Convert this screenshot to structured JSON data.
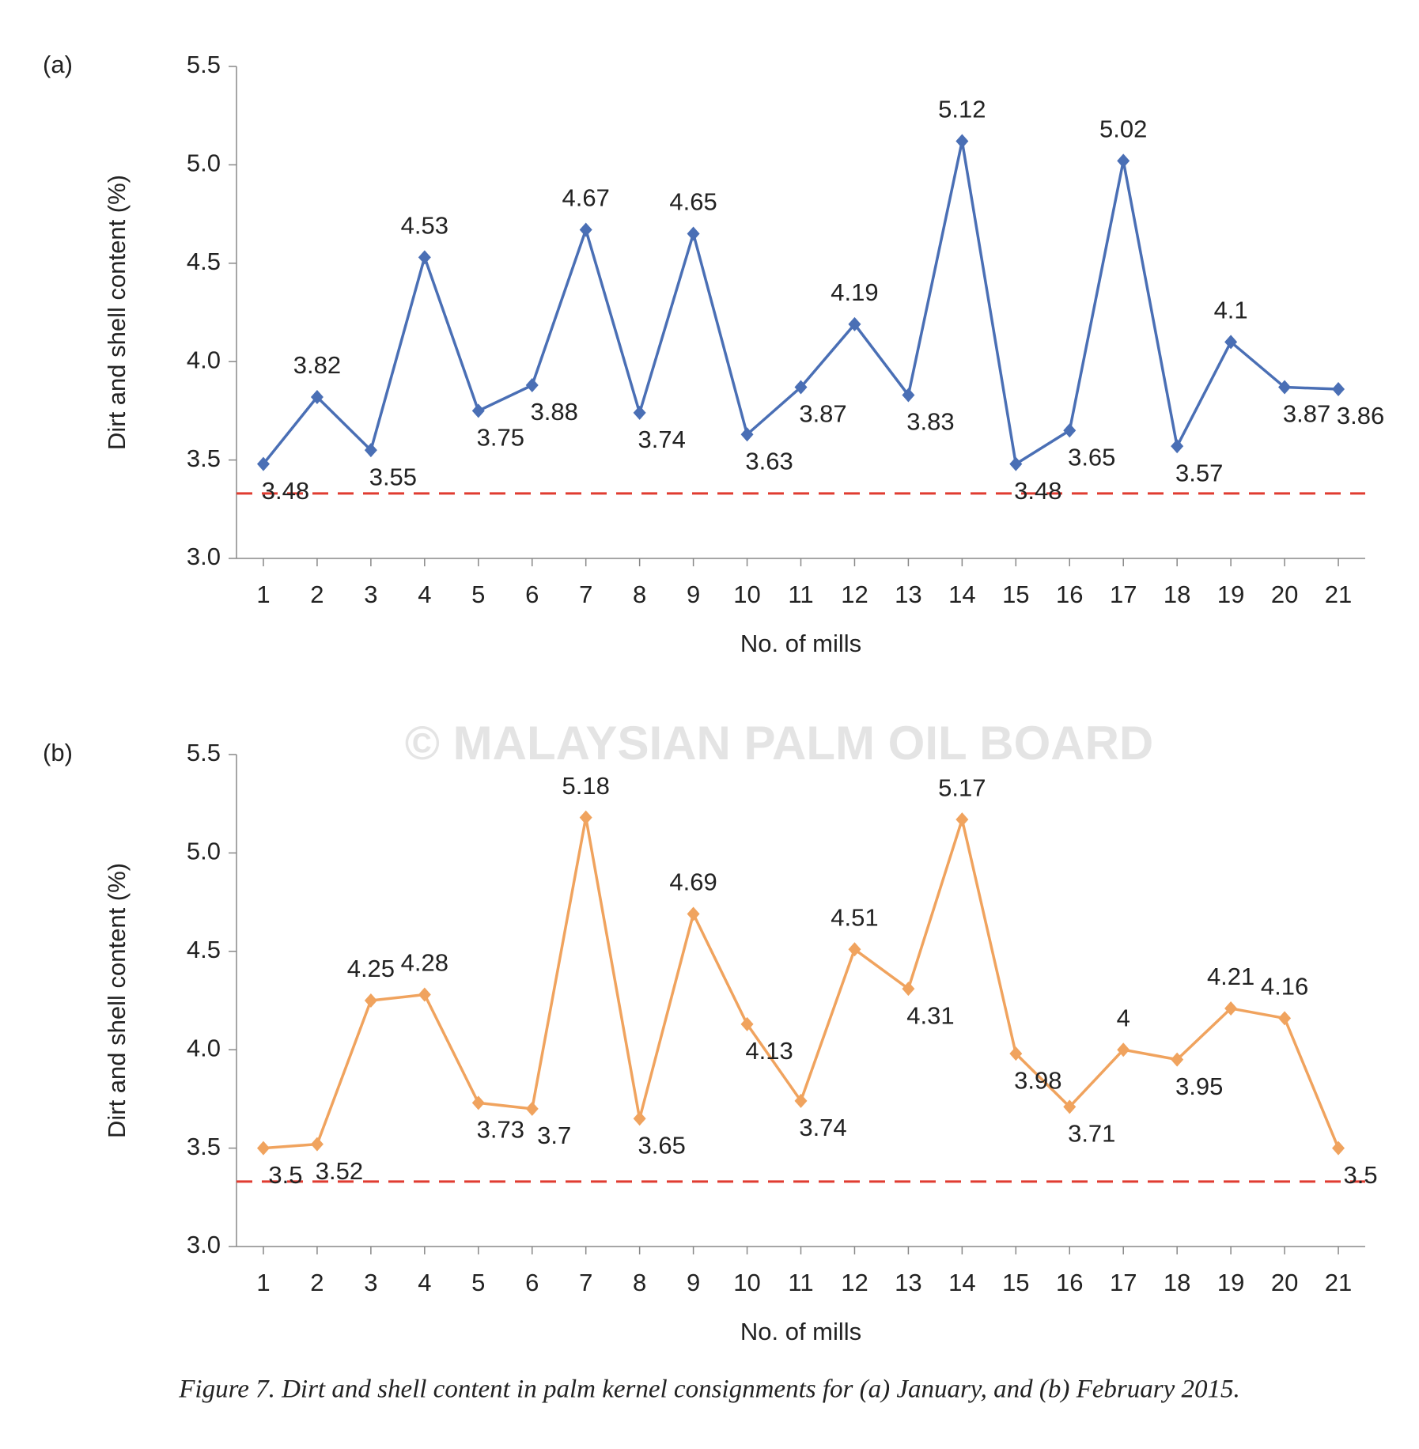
{
  "chart_data": [
    {
      "type": "line",
      "panel_label": "(a)",
      "y_label": "Dirt and shell content (%)",
      "x_label": "No. of mills",
      "categories": [
        "1",
        "2",
        "3",
        "4",
        "5",
        "6",
        "7",
        "8",
        "9",
        "10",
        "11",
        "12",
        "13",
        "14",
        "15",
        "16",
        "17",
        "18",
        "19",
        "20",
        "21"
      ],
      "series": [
        {
          "color": "#4a6fb5",
          "values": [
            3.48,
            3.82,
            3.55,
            4.53,
            3.75,
            3.88,
            4.67,
            3.74,
            4.65,
            3.63,
            3.87,
            4.19,
            3.83,
            5.12,
            3.48,
            3.65,
            5.02,
            3.57,
            4.1,
            3.87,
            3.86
          ]
        }
      ],
      "ylim": [
        3,
        5.5
      ],
      "yticks": [
        {
          "value": 3,
          "label": "3.0"
        },
        3.5,
        {
          "value": 4,
          "label": "4.0"
        },
        4.5,
        {
          "value": 5,
          "label": "5.0"
        },
        5.5
      ],
      "reference_line": {
        "value": 3.33,
        "color": "#e03c31"
      }
    },
    {
      "type": "line",
      "panel_label": "(b)",
      "y_label": "Dirt and shell content (%)",
      "x_label": "No. of mills",
      "categories": [
        "1",
        "2",
        "3",
        "4",
        "5",
        "6",
        "7",
        "8",
        "9",
        "10",
        "11",
        "12",
        "13",
        "14",
        "15",
        "16",
        "17",
        "18",
        "19",
        "20",
        "21"
      ],
      "series": [
        {
          "color": "#f0a35e",
          "values": [
            3.5,
            3.52,
            4.25,
            4.28,
            3.73,
            3.7,
            5.18,
            3.65,
            4.69,
            4.13,
            3.74,
            4.51,
            4.31,
            5.17,
            3.98,
            3.71,
            4,
            3.95,
            4.21,
            4.16,
            3.5
          ]
        }
      ],
      "ylim": [
        3,
        5.5
      ],
      "yticks": [
        {
          "value": 3,
          "label": "3.0"
        },
        3.5,
        {
          "value": 4,
          "label": "4.0"
        },
        4.5,
        {
          "value": 5,
          "label": "5.0"
        },
        5.5
      ],
      "reference_line": {
        "value": 3.33,
        "color": "#e03c31"
      }
    }
  ],
  "watermark": "© MALAYSIAN PALM OIL BOARD",
  "caption": "Figure 7. Dirt and shell content in palm kernel consignments for (a) January, and (b) February 2015."
}
